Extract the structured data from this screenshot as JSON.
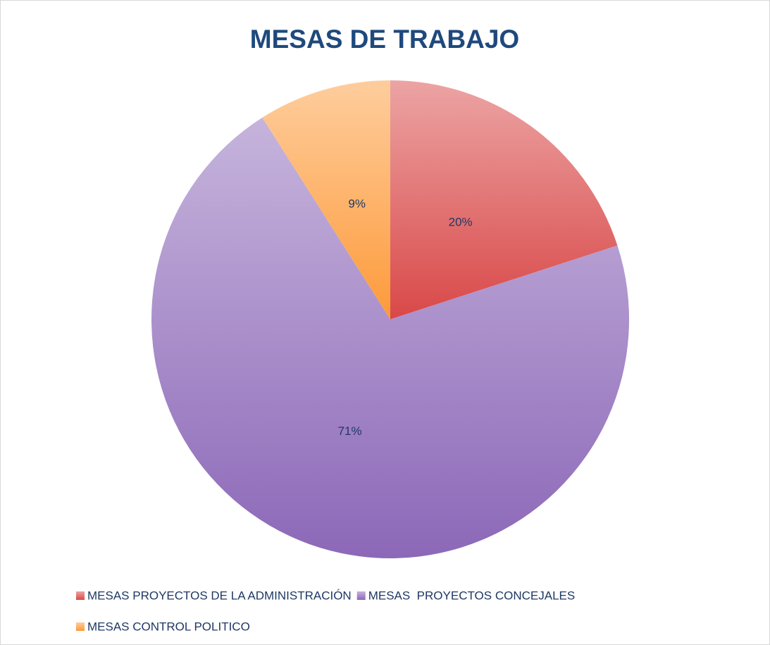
{
  "chart_data": {
    "type": "pie",
    "title": "MESAS DE TRABAJO",
    "categories": [
      "MESAS PROYECTOS DE LA ADMINISTRACIÓN",
      "MESAS  PROYECTOS CONCEJALES",
      "MESAS CONTROL POLITICO"
    ],
    "values": [
      20,
      71,
      9
    ],
    "value_labels": [
      "20%",
      "71%",
      "9%"
    ],
    "colors": [
      "#d94848",
      "#8c68b8",
      "#fd9a3a"
    ],
    "legend": "bottom"
  }
}
